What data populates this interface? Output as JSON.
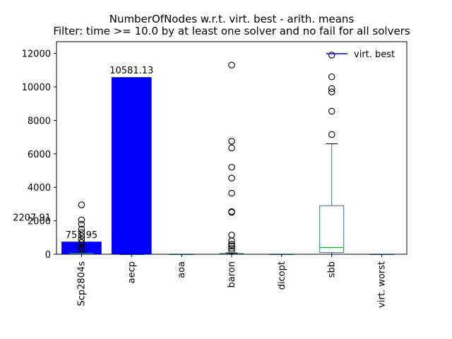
{
  "chart_data": {
    "type": "bar",
    "title": "NumberOfNodes w.r.t. virt. best - arith. means",
    "subtitle": "Filter: time >= 10.0 by at least one solver and no fail for all solvers",
    "xlabel": "",
    "ylabel": "",
    "ylim": [
      0,
      12700
    ],
    "yticks": [
      0,
      2000,
      4000,
      6000,
      8000,
      10000,
      12000
    ],
    "grid": false,
    "legend_position": "top-right",
    "legend": [
      {
        "name": "virt. best",
        "color": "#0000ff"
      }
    ],
    "categories": [
      "Scp2804s",
      "aecp",
      "aoa",
      "baron",
      "dicopt",
      "sbb",
      "virt. worst"
    ],
    "series": [
      {
        "name": "arith. means",
        "values": [
          751.95,
          10581.13,
          0,
          0,
          0,
          0,
          0
        ],
        "color": "#0000ff"
      }
    ],
    "bar_labels": [
      {
        "category": "Scp2804s",
        "text": "751.95"
      },
      {
        "category": "aecp",
        "text": "10581.13"
      }
    ],
    "extra_annotation": {
      "text": "2207.91",
      "y": 2207.91
    },
    "boxplots": [
      {
        "category": "Scp2804s",
        "q1": 0,
        "median": 20,
        "q3": 60,
        "whisker_low": 0,
        "whisker_high": 120,
        "outliers": [
          300,
          400,
          550,
          700,
          900,
          1100,
          1300,
          1500,
          1800,
          2050,
          2950
        ]
      },
      {
        "category": "aecp",
        "q1": 0,
        "median": 0,
        "q3": 0,
        "whisker_low": 0,
        "whisker_high": 0,
        "outliers": []
      },
      {
        "category": "aoa",
        "q1": 0,
        "median": 0,
        "q3": 0,
        "whisker_low": 0,
        "whisker_high": 0,
        "outliers": []
      },
      {
        "category": "baron",
        "q1": 0,
        "median": 10,
        "q3": 40,
        "whisker_low": 0,
        "whisker_high": 80,
        "outliers": [
          200,
          350,
          500,
          600,
          800,
          1150,
          2500,
          2550,
          3650,
          4550,
          5200,
          6350,
          6750,
          11300
        ]
      },
      {
        "category": "dicopt",
        "q1": 0,
        "median": 0,
        "q3": 0,
        "whisker_low": 0,
        "whisker_high": 0,
        "outliers": []
      },
      {
        "category": "sbb",
        "q1": 100,
        "median": 400,
        "q3": 2900,
        "whisker_low": 0,
        "whisker_high": 6600,
        "outliers": [
          7150,
          8550,
          9700,
          9900,
          10600,
          11900
        ]
      },
      {
        "category": "virt. worst",
        "q1": 0,
        "median": 0,
        "q3": 0,
        "whisker_low": 0,
        "whisker_high": 0,
        "outliers": []
      }
    ],
    "box_color": "#1f77b4",
    "median_color": "#2ca02c"
  }
}
